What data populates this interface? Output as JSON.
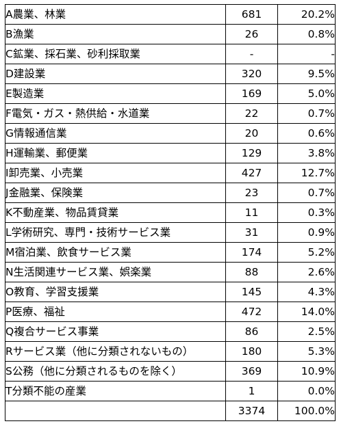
{
  "table": {
    "rows": [
      {
        "name": "A農業、林業",
        "count": "681",
        "share": "20.2%"
      },
      {
        "name": "B漁業",
        "count": "26",
        "share": "0.8%"
      },
      {
        "name": "C鉱業、採石業、砂利採取業",
        "count": "-",
        "share": "-"
      },
      {
        "name": "D建設業",
        "count": "320",
        "share": "9.5%"
      },
      {
        "name": "E製造業",
        "count": "169",
        "share": "5.0%"
      },
      {
        "name": "F電気・ガス・熱供給・水道業",
        "count": "22",
        "share": "0.7%"
      },
      {
        "name": "G情報通信業",
        "count": "20",
        "share": "0.6%"
      },
      {
        "name": "H運輸業、郵便業",
        "count": "129",
        "share": "3.8%"
      },
      {
        "name": "I卸売業、小売業",
        "count": "427",
        "share": "12.7%"
      },
      {
        "name": "J金融業、保険業",
        "count": "23",
        "share": "0.7%"
      },
      {
        "name": "K不動産業、物品賃貸業",
        "count": "11",
        "share": "0.3%"
      },
      {
        "name": "L学術研究、専門・技術サービス業",
        "count": "31",
        "share": "0.9%"
      },
      {
        "name": "M宿泊業、飲食サービス業",
        "count": "174",
        "share": "5.2%"
      },
      {
        "name": "N生活関連サービス業、娯楽業",
        "count": "88",
        "share": "2.6%"
      },
      {
        "name": "O教育、学習支援業",
        "count": "145",
        "share": "4.3%"
      },
      {
        "name": "P医療、福祉",
        "count": "472",
        "share": "14.0%"
      },
      {
        "name": "Q複合サービス事業",
        "count": "86",
        "share": "2.5%"
      },
      {
        "name": "Rサービス業（他に分類されないもの）",
        "count": "180",
        "share": "5.3%"
      },
      {
        "name": "S公務（他に分類されるものを除く）",
        "count": "369",
        "share": "10.9%"
      },
      {
        "name": "T分類不能の産業",
        "count": "1",
        "share": "0.0%"
      }
    ],
    "total": {
      "name": "",
      "count": "3374",
      "share": "100.0%"
    }
  }
}
